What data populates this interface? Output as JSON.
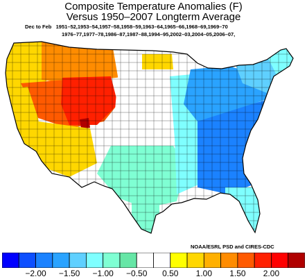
{
  "title": {
    "line1": "Composite Temperature Anomalies (F)",
    "line2": "Versus 1950–2007 Longterm Average"
  },
  "subtitle": {
    "season": "Dec to Feb",
    "years_line1": "1951–52,1953–54,1957–58,1958–59,1963–64,1965–66,1968–69,1969–70",
    "years_line2": "1976–77,1977–78,1986–87,1987–88,1994–95,2002–03,2004–05,2006–07,"
  },
  "credit": "NOAA/ESRL PSD and CIRES-CDC",
  "legend": {
    "colors": [
      "#0000ff",
      "#0d4fff",
      "#1b82ff",
      "#2aa3ff",
      "#5fd0ff",
      "#7fffff",
      "#7fffd3",
      "#66e6a6",
      "#ffffff",
      "#ffffff",
      "#ffff00",
      "#ffd700",
      "#ffb000",
      "#ff8c00",
      "#ff5a00",
      "#ff2000",
      "#ff0000",
      "#b00000"
    ],
    "ticks": [
      "−2.00",
      "−1.50",
      "−1.00",
      "−0.50",
      "0.50",
      "1.00",
      "1.50",
      "2.00"
    ],
    "tick_bins": [
      2,
      4,
      6,
      8,
      10,
      12,
      14,
      16
    ]
  },
  "map_regions": [
    {
      "name": "far-northwest",
      "value": 0.6
    },
    {
      "name": "idaho-montana-west",
      "value": 1.1
    },
    {
      "name": "great-basin",
      "value": 1.3
    },
    {
      "name": "utah-colorado-core",
      "value": 1.6
    },
    {
      "name": "colorado-hotspot",
      "value": 2.1
    },
    {
      "name": "pacific-coast",
      "value": 0.6
    },
    {
      "name": "desert-southwest",
      "value": 0.6
    },
    {
      "name": "northern-plains",
      "value": 0.0
    },
    {
      "name": "north-dakota",
      "value": 0.7
    },
    {
      "name": "south-central",
      "value": -0.6
    },
    {
      "name": "south-texas",
      "value": -0.6
    },
    {
      "name": "mississippi-valley",
      "value": -0.9
    },
    {
      "name": "southeast",
      "value": -1.7
    },
    {
      "name": "ohio-valley",
      "value": -1.4
    },
    {
      "name": "northeast",
      "value": -1.2
    },
    {
      "name": "new-england",
      "value": -0.8
    },
    {
      "name": "florida",
      "value": -0.9
    }
  ]
}
